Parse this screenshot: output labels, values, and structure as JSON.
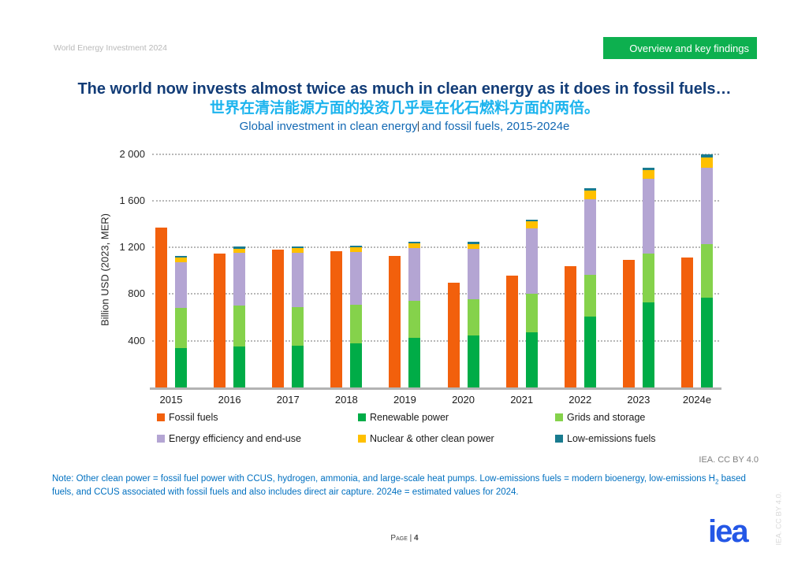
{
  "header": {
    "doc_title": "World Energy Investment 2024",
    "badge": "Overview and key findings"
  },
  "titles": {
    "main": "The world now invests almost twice as much in clean energy as it does in fossil fuels…",
    "zh": "世界在清洁能源方面的投资几乎是在化石燃料方面的两倍。",
    "sub_before_caret": "Global investment in clean energy",
    "sub_after_caret": " and fossil fuels, 2015-2024e"
  },
  "colors": {
    "badge_green": "#0db04f",
    "title_navy": "#123c77",
    "subtitle_cyan": "#1cb4ee",
    "subtitle_blue": "#1268b3",
    "note_blue": "#0070c0",
    "logo_blue": "#2457e6"
  },
  "chart_data": {
    "type": "bar",
    "variant": "grouped-stacked",
    "title": "Global investment in clean energy and fossil fuels, 2015-2024e",
    "ylabel": "Billion USD (2023, MER)",
    "categories": [
      "2015",
      "2016",
      "2017",
      "2018",
      "2019",
      "2020",
      "2021",
      "2022",
      "2023",
      "2024e"
    ],
    "series": [
      {
        "name": "Fossil fuels",
        "group": "fossil",
        "color": "#f2600c",
        "values": [
          1370,
          1145,
          1180,
          1170,
          1125,
          895,
          960,
          1040,
          1090,
          1110
        ]
      },
      {
        "name": "Renewable power",
        "group": "clean",
        "color": "#00ac47",
        "values": [
          340,
          350,
          355,
          380,
          425,
          445,
          470,
          610,
          730,
          770
        ]
      },
      {
        "name": "Grids and storage",
        "group": "clean",
        "color": "#85d24b",
        "values": [
          340,
          350,
          330,
          330,
          320,
          310,
          330,
          355,
          415,
          455
        ]
      },
      {
        "name": "Energy efficiency and end-use",
        "group": "clean",
        "color": "#b4a5d3",
        "values": [
          390,
          455,
          470,
          450,
          450,
          430,
          560,
          645,
          645,
          655
        ]
      },
      {
        "name": "Nuclear & other clean power",
        "group": "clean",
        "color": "#ffc000",
        "values": [
          40,
          35,
          40,
          40,
          40,
          45,
          65,
          75,
          70,
          90
        ]
      },
      {
        "name": "Low-emissions fuels",
        "group": "clean",
        "color": "#197b8f",
        "values": [
          15,
          15,
          10,
          15,
          10,
          15,
          15,
          20,
          20,
          30
        ]
      }
    ],
    "ylim": [
      0,
      2000
    ],
    "yticks": [
      400,
      800,
      1200,
      1600,
      2000
    ],
    "ytick_labels": [
      "400",
      "800",
      "1 200",
      "1 600",
      "2 000"
    ],
    "grid": "horizontal dotted",
    "legend_position": "bottom"
  },
  "footer": {
    "cc": "IEA. CC BY 4.0",
    "note_p1": "Note: Other clean power = fossil fuel power with CCUS, hydrogen, ammonia, and large-scale heat pumps. Low-emissions fuels = modern bioenergy, low-emissions H",
    "note_sub": "2",
    "note_p2": " based fuels, and CCUS associated with fossil fuels and also includes direct air capture. 2024e = estimated values for 2024.",
    "page_prefix": "Page | ",
    "page_number": "4",
    "logo_text": "iea",
    "vertical_cc": "IEA. CC BY 4.0."
  }
}
